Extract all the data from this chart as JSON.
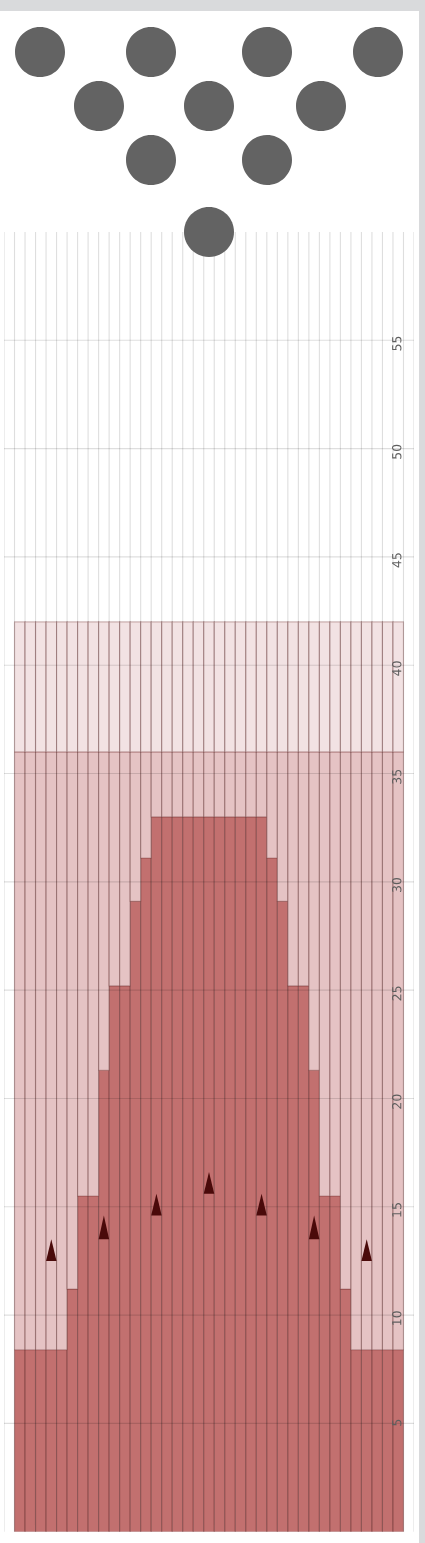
{
  "chart_data": {
    "type": "bar",
    "categories": [
      null,
      null,
      null,
      null,
      null,
      null,
      null,
      null,
      null,
      null,
      null,
      null,
      null,
      null,
      null,
      null,
      null,
      null,
      null,
      null,
      null,
      null,
      null,
      null,
      null,
      null,
      null,
      null,
      null,
      null,
      null,
      null,
      null,
      null,
      null,
      null,
      null,
      null,
      null
    ],
    "series": [
      {
        "color": "#c2706f",
        "values": [
          0,
          8.4,
          8.4,
          8.4,
          8.4,
          8.4,
          11.2,
          15.5,
          15.5,
          21.3,
          25.2,
          25.2,
          29.1,
          31.1,
          33,
          33,
          33,
          33,
          33,
          33,
          33,
          33,
          33,
          33,
          33,
          31.1,
          29.1,
          25.2,
          25.2,
          21.3,
          15.5,
          15.5,
          11.2,
          8.4,
          8.4,
          8.4,
          8.4,
          8.4,
          0
        ]
      },
      {
        "color": "#e5c3c4",
        "values": [
          0,
          27.6,
          27.6,
          27.6,
          27.6,
          27.6,
          24.8,
          20.5,
          20.5,
          14.7,
          10.8,
          10.8,
          6.9,
          4.9,
          3,
          3,
          3,
          3,
          3,
          3,
          3,
          3,
          3,
          3,
          3,
          4.9,
          6.9,
          10.8,
          10.8,
          14.7,
          20.5,
          20.5,
          24.8,
          27.6,
          27.6,
          27.6,
          27.6,
          27.6,
          0
        ]
      },
      {
        "color": "#f2e2e3",
        "values": [
          0,
          6,
          6,
          6,
          6,
          6,
          6,
          6,
          6,
          6,
          6,
          6,
          6,
          6,
          6,
          6,
          6,
          6,
          6,
          6,
          6,
          6,
          6,
          6,
          6,
          6,
          6,
          6,
          6,
          6,
          6,
          6,
          6,
          6,
          6,
          6,
          6,
          6,
          0
        ]
      }
    ],
    "ylim": [
      0,
      60
    ],
    "yticks": [
      5,
      10,
      15,
      20,
      25,
      30,
      35,
      40,
      45,
      50,
      55
    ],
    "stacked": true,
    "grid": true,
    "tick_labels": "y"
  }
}
